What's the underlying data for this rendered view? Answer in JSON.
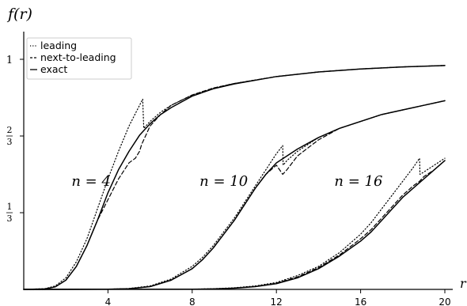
{
  "chart_data": {
    "type": "line",
    "ylabel": "f(r)",
    "xlabel": "r",
    "xlim": [
      0,
      20
    ],
    "ylim": [
      0,
      1
    ],
    "x_ticks": [
      {
        "value": 4,
        "label": "4"
      },
      {
        "value": 8,
        "label": "8"
      },
      {
        "value": 12,
        "label": "12"
      },
      {
        "value": 16,
        "label": "16"
      },
      {
        "value": 20,
        "label": "20"
      }
    ],
    "y_ticks": [
      {
        "value": 0.3333,
        "num": "1",
        "den": "3"
      },
      {
        "value": 0.6667,
        "num": "2",
        "den": "3"
      },
      {
        "value": 1,
        "label": "1"
      }
    ],
    "grid": false,
    "legend": {
      "placement": "top-left",
      "entries": [
        {
          "label": "leading",
          "style": "dotted"
        },
        {
          "label": "next-to-leading",
          "style": "dashed"
        },
        {
          "label": "exact",
          "style": "solid"
        }
      ]
    },
    "annotations": [
      {
        "text": "n = 4",
        "x": 3.2,
        "y": 0.45
      },
      {
        "text": "n = 10",
        "x": 9.5,
        "y": 0.45
      },
      {
        "text": "n = 16",
        "x": 15.9,
        "y": 0.45
      }
    ],
    "curve_groups": [
      {
        "n": 4,
        "series": [
          {
            "style": "dotted",
            "x": [
              0,
              1,
              1.5,
              2,
              2.5,
              3,
              3.5,
              4,
              4.5,
              5,
              5.5,
              5.65,
              5.7,
              6,
              6.5,
              7,
              8,
              9,
              10,
              12,
              14,
              16,
              18,
              20
            ],
            "y": [
              0,
              0.003,
              0.015,
              0.05,
              0.12,
              0.22,
              0.35,
              0.48,
              0.6,
              0.71,
              0.8,
              0.827,
              0.7,
              0.73,
              0.77,
              0.8,
              0.845,
              0.875,
              0.895,
              0.925,
              0.945,
              0.958,
              0.967,
              0.973
            ]
          },
          {
            "style": "dashed",
            "x": [
              0,
              1,
              1.5,
              2,
              2.5,
              3,
              3.5,
              4,
              4.5,
              5,
              5.3,
              5.5,
              5.6,
              5.7,
              6,
              6.5,
              7,
              8,
              9,
              10,
              12,
              14,
              16,
              18,
              20
            ],
            "y": [
              0,
              0.002,
              0.011,
              0.04,
              0.1,
              0.19,
              0.3,
              0.39,
              0.48,
              0.55,
              0.57,
              0.6,
              0.63,
              0.65,
              0.71,
              0.76,
              0.8,
              0.845,
              0.875,
              0.895,
              0.925,
              0.945,
              0.958,
              0.967,
              0.973
            ]
          },
          {
            "style": "solid",
            "x": [
              0,
              1,
              1.5,
              2,
              2.5,
              3,
              3.5,
              4,
              4.5,
              5,
              5.5,
              6,
              6.5,
              7,
              8,
              9,
              10,
              12,
              14,
              16,
              18,
              20
            ],
            "y": [
              0,
              0.002,
              0.011,
              0.04,
              0.1,
              0.19,
              0.3,
              0.42,
              0.52,
              0.6,
              0.67,
              0.72,
              0.76,
              0.79,
              0.84,
              0.872,
              0.893,
              0.925,
              0.945,
              0.958,
              0.967,
              0.973
            ]
          }
        ]
      },
      {
        "n": 10,
        "series": [
          {
            "style": "dotted",
            "x": [
              0,
              4,
              5,
              6,
              7,
              8,
              8.5,
              9,
              9.5,
              10,
              10.5,
              11,
              11.5,
              12,
              12.3,
              12.32,
              12.5,
              13,
              14,
              15,
              16,
              17,
              18,
              19,
              20
            ],
            "y": [
              0,
              0.001,
              0.004,
              0.015,
              0.045,
              0.1,
              0.14,
              0.19,
              0.25,
              0.31,
              0.38,
              0.45,
              0.52,
              0.59,
              0.625,
              0.54,
              0.56,
              0.6,
              0.66,
              0.7,
              0.73,
              0.76,
              0.78,
              0.8,
              0.82
            ]
          },
          {
            "style": "dashed",
            "x": [
              0,
              4,
              5,
              6,
              7,
              8,
              8.5,
              9,
              9.5,
              10,
              10.5,
              11,
              11.5,
              12,
              12.3,
              12.5,
              13,
              14,
              15,
              16,
              17,
              18,
              19,
              20
            ],
            "y": [
              0,
              0.001,
              0.003,
              0.012,
              0.04,
              0.09,
              0.13,
              0.18,
              0.24,
              0.3,
              0.37,
              0.44,
              0.5,
              0.54,
              0.5,
              0.52,
              0.58,
              0.65,
              0.7,
              0.73,
              0.76,
              0.78,
              0.8,
              0.82
            ]
          },
          {
            "style": "solid",
            "x": [
              0,
              4,
              5,
              6,
              7,
              8,
              8.5,
              9,
              9.5,
              10,
              10.5,
              11,
              11.5,
              12,
              12.5,
              13,
              14,
              15,
              16,
              17,
              18,
              19,
              20
            ],
            "y": [
              0,
              0.001,
              0.003,
              0.012,
              0.04,
              0.09,
              0.13,
              0.18,
              0.24,
              0.3,
              0.37,
              0.44,
              0.5,
              0.55,
              0.58,
              0.61,
              0.66,
              0.7,
              0.73,
              0.76,
              0.78,
              0.8,
              0.82
            ]
          }
        ]
      },
      {
        "n": 16,
        "series": [
          {
            "style": "dotted",
            "x": [
              0,
              8,
              9,
              10,
              11,
              12,
              13,
              14,
              15,
              16,
              16.5,
              17,
              17.5,
              18,
              18.5,
              18.8,
              18.82,
              19,
              19.5,
              20
            ],
            "y": [
              0,
              0.001,
              0.003,
              0.007,
              0.015,
              0.03,
              0.06,
              0.1,
              0.16,
              0.24,
              0.29,
              0.35,
              0.41,
              0.47,
              0.53,
              0.57,
              0.5,
              0.51,
              0.54,
              0.57
            ]
          },
          {
            "style": "dashed",
            "x": [
              0,
              8,
              9,
              10,
              11,
              12,
              13,
              14,
              15,
              16,
              16.5,
              17,
              17.5,
              18,
              18.5,
              18.8,
              19,
              19.5,
              20
            ],
            "y": [
              0,
              0.001,
              0.002,
              0.006,
              0.013,
              0.027,
              0.054,
              0.095,
              0.15,
              0.22,
              0.26,
              0.31,
              0.36,
              0.41,
              0.45,
              0.47,
              0.49,
              0.52,
              0.56
            ]
          },
          {
            "style": "solid",
            "x": [
              0,
              8,
              9,
              10,
              11,
              12,
              13,
              14,
              15,
              16,
              16.5,
              17,
              17.5,
              18,
              18.5,
              19,
              19.5,
              20
            ],
            "y": [
              0,
              0.001,
              0.002,
              0.005,
              0.012,
              0.025,
              0.05,
              0.09,
              0.145,
              0.21,
              0.25,
              0.3,
              0.35,
              0.4,
              0.44,
              0.48,
              0.52,
              0.56
            ]
          }
        ]
      }
    ]
  }
}
